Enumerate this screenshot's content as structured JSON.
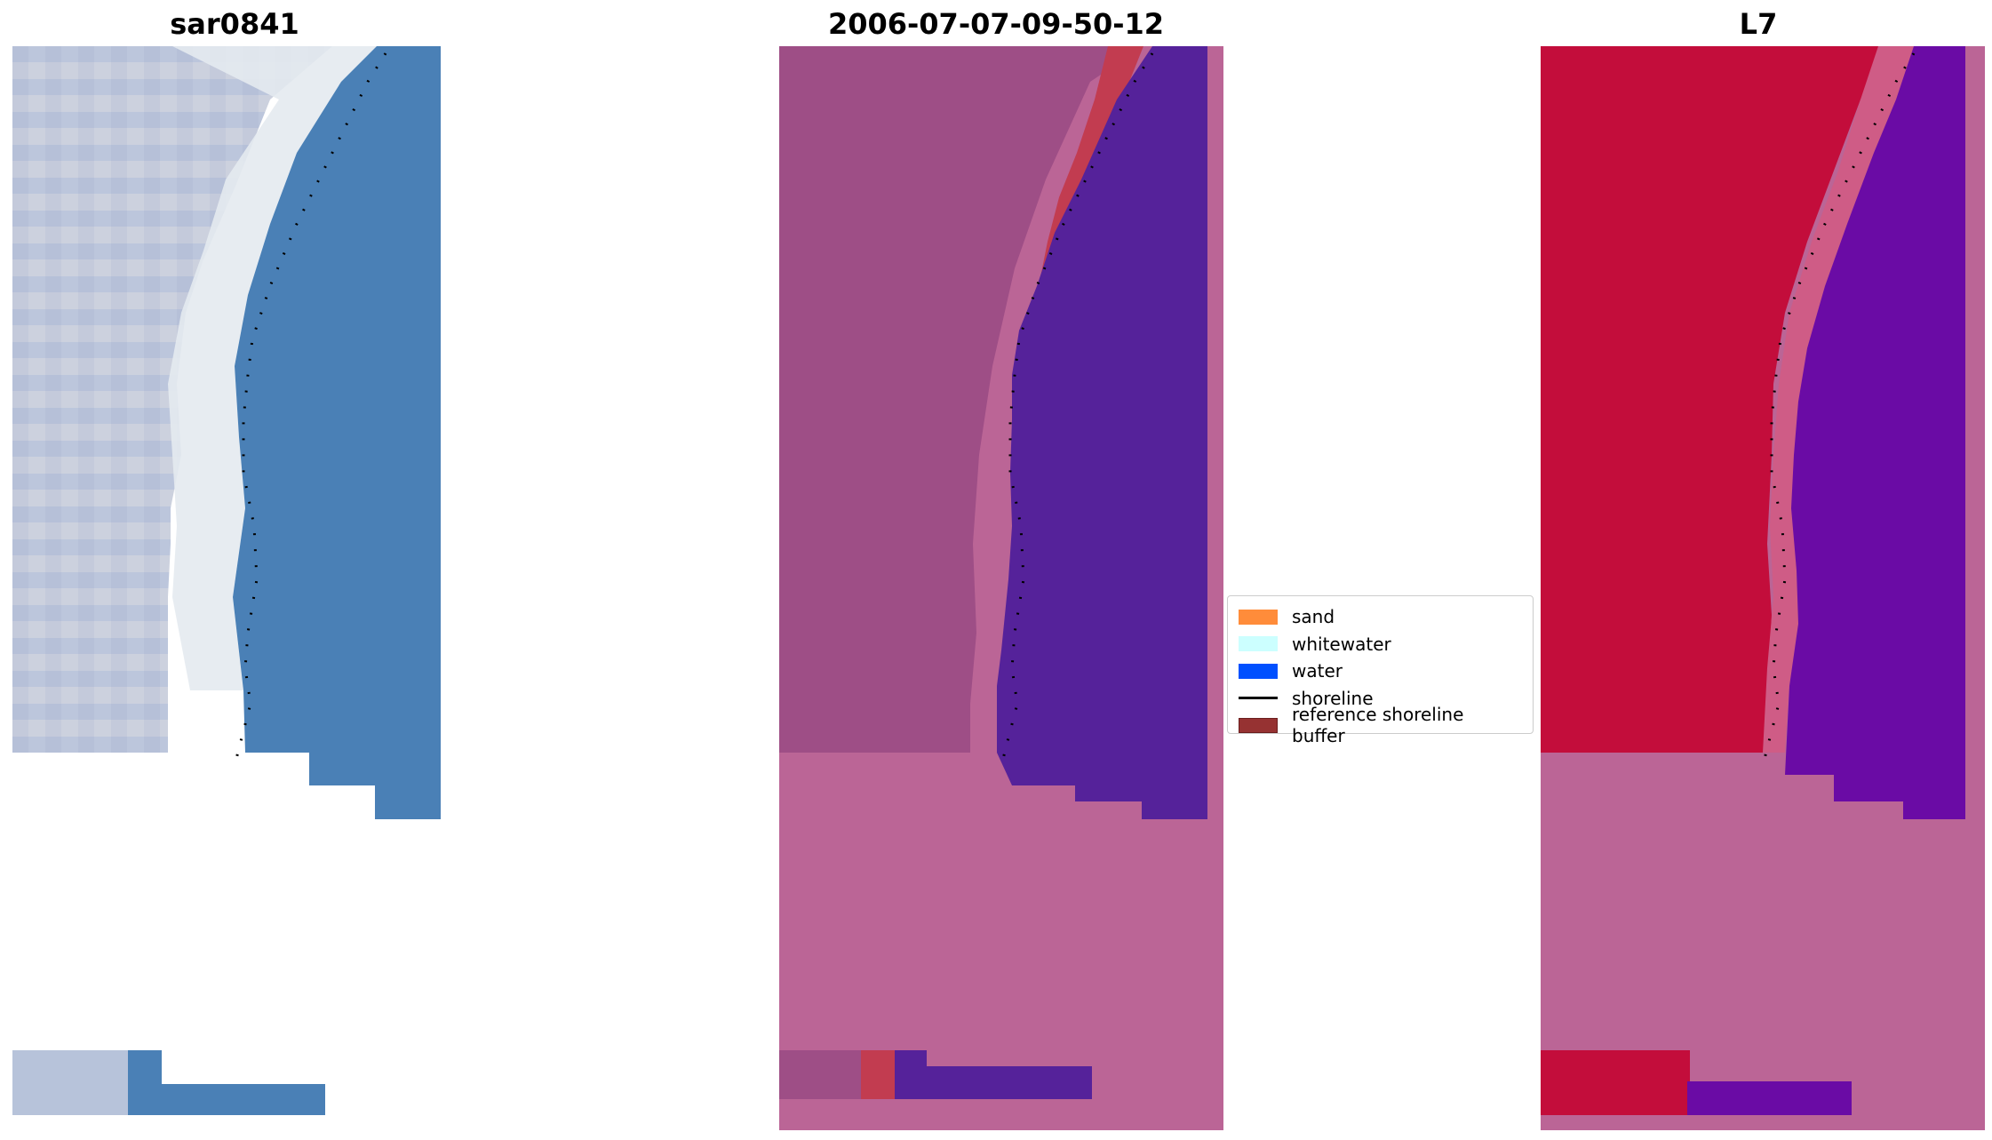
{
  "panels": [
    {
      "title": "sar0841"
    },
    {
      "title": "2006-07-07-09-50-12"
    },
    {
      "title": "L7"
    }
  ],
  "legend": {
    "items": [
      {
        "label": "sand",
        "color": "#ff8c3a"
      },
      {
        "label": "whitewater",
        "color": "#ccffff"
      },
      {
        "label": "water",
        "color": "#0050ff"
      },
      {
        "label": "shoreline",
        "color": "#000000"
      },
      {
        "label": "reference shoreline buffer",
        "color": "#963232"
      }
    ]
  },
  "colors": {
    "rgb_land": "#c2c8da",
    "rgb_beach": "#e8eef2",
    "rgb_water": "#4a7fb5",
    "class_land": "#9e4e86",
    "class_buffer": "#c23c50",
    "class_water": "#55229a",
    "class_nodata": "#bb6596",
    "mndwi_land": "#c30d3b",
    "mndwi_water": "#6a0ba5",
    "mndwi_nodata": "#bb6596"
  }
}
